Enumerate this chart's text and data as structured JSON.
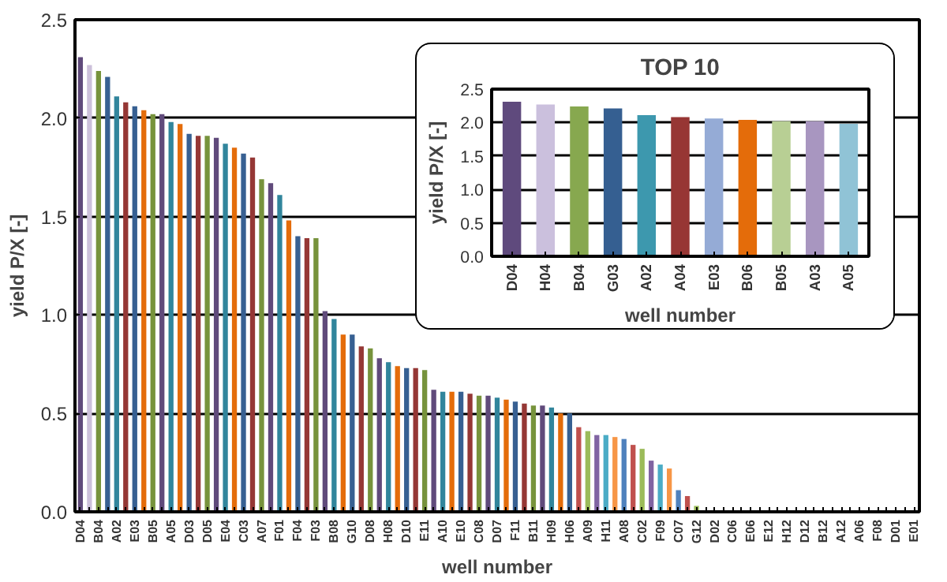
{
  "chart_data": [
    {
      "type": "bar",
      "xlabel": "well number",
      "ylabel": "yield P/X [-]",
      "grid": "y",
      "ylim": [
        0,
        2.5
      ],
      "yticks": [
        {
          "value": 0,
          "label": "0.0"
        },
        {
          "value": 0.5,
          "label": "0.5"
        },
        {
          "value": 1,
          "label": "1.0"
        },
        {
          "value": 1.5,
          "label": "1.5"
        },
        {
          "value": 2,
          "label": "2.0"
        },
        {
          "value": 2.5,
          "label": "2.5"
        }
      ],
      "categories": [
        "D04",
        null,
        "B04",
        null,
        "A02",
        null,
        "E03",
        null,
        "B05",
        null,
        "A05",
        null,
        "D03",
        null,
        "D05",
        null,
        "E04",
        null,
        "C03",
        null,
        "A07",
        null,
        "F01",
        null,
        "F04",
        null,
        "F03",
        null,
        "B08",
        null,
        "G10",
        null,
        "D08",
        null,
        "H08",
        null,
        "D10",
        null,
        "E11",
        null,
        "A10",
        null,
        "E10",
        null,
        "C08",
        null,
        "D07",
        null,
        "F11",
        null,
        "B11",
        null,
        "H09",
        null,
        "H06",
        null,
        "A09",
        null,
        "H11",
        null,
        "A08",
        null,
        "C02",
        null,
        "F09",
        null,
        "C07",
        null,
        "G12",
        null,
        "D02",
        null,
        "C06",
        null,
        "E06",
        null,
        "E12",
        null,
        "H12",
        null,
        "D12",
        null,
        "B12",
        null,
        "A12",
        null,
        "A06",
        null,
        "F08",
        null,
        "D01",
        null,
        "E01"
      ],
      "values": [
        2.31,
        2.27,
        2.24,
        2.21,
        2.11,
        2.08,
        2.06,
        2.04,
        2.02,
        2.02,
        1.98,
        1.97,
        1.92,
        1.91,
        1.91,
        1.9,
        1.87,
        1.85,
        1.82,
        1.8,
        1.69,
        1.67,
        1.61,
        1.48,
        1.4,
        1.39,
        1.39,
        1.02,
        0.98,
        0.9,
        0.9,
        0.84,
        0.83,
        0.78,
        0.76,
        0.74,
        0.73,
        0.73,
        0.72,
        0.62,
        0.61,
        0.61,
        0.61,
        0.6,
        0.59,
        0.59,
        0.58,
        0.57,
        0.56,
        0.55,
        0.54,
        0.54,
        0.53,
        0.5,
        0.5,
        0.43,
        0.41,
        0.39,
        0.39,
        0.38,
        0.37,
        0.34,
        0.32,
        0.26,
        0.24,
        0.22,
        0.11,
        0.08,
        0.03,
        null,
        null,
        null,
        null,
        null,
        0,
        0,
        0,
        0,
        0,
        0,
        0,
        0,
        0,
        0,
        0,
        0,
        0,
        0,
        0,
        0,
        0,
        0,
        0
      ],
      "colors": [
        "#604a7b",
        "#ccc0da",
        "#77933c",
        "#376092",
        "#31859c",
        "#953735",
        "#376092",
        "#e46c0a",
        "#77933c",
        "#604a7b",
        "#31859c",
        "#e46c0a",
        "#376092",
        "#953735",
        "#77933c",
        "#604a7b",
        "#31859c",
        "#e46c0a",
        "#376092",
        "#953735",
        "#77933c",
        "#604a7b",
        "#31859c",
        "#e46c0a",
        "#376092",
        "#953735",
        "#77933c",
        "#604a7b",
        "#31859c",
        "#e46c0a",
        "#376092",
        "#953735",
        "#77933c",
        "#604a7b",
        "#31859c",
        "#e46c0a",
        "#376092",
        "#953735",
        "#77933c",
        "#604a7b",
        "#31859c",
        "#e46c0a",
        "#376092",
        "#953735",
        "#77933c",
        "#604a7b",
        "#31859c",
        "#e46c0a",
        "#376092",
        "#953735",
        "#77933c",
        "#604a7b",
        "#31859c",
        "#e46c0a",
        "#376092",
        "#c0504d",
        "#9bbb59",
        "#8064a2",
        "#4bacc6",
        "#f79646",
        "#4f81bd",
        "#c0504d",
        "#9bbb59",
        "#8064a2",
        "#4bacc6",
        "#f79646",
        "#4f81bd",
        "#c0504d",
        "#9bbb59",
        "#8064a2",
        "#4bacc6",
        "#f79646",
        "#4f81bd",
        "#c0504d",
        "#9bbb59",
        "#8064a2",
        "#4bacc6",
        "#f79646",
        "#4f81bd",
        "#c0504d",
        "#9bbb59",
        "#8064a2",
        "#4bacc6",
        "#f79646",
        "#4f81bd",
        "#c0504d",
        "#9bbb59",
        "#8064a2",
        "#4bacc6",
        "#f79646",
        "#4f81bd",
        "#c0504d",
        "#9bbb59"
      ]
    },
    {
      "type": "bar",
      "title": "TOP 10",
      "xlabel": "well number",
      "ylabel": "yield P/X [-]",
      "grid": "y",
      "ylim": [
        0,
        2.5
      ],
      "yticks": [
        {
          "value": 0,
          "label": "0.0"
        },
        {
          "value": 0.5,
          "label": "0.5"
        },
        {
          "value": 1,
          "label": "1.0"
        },
        {
          "value": 1.5,
          "label": "1.5"
        },
        {
          "value": 2,
          "label": "2.0"
        },
        {
          "value": 2.5,
          "label": "2.5"
        }
      ],
      "categories": [
        "D04",
        "H04",
        "B04",
        "G03",
        "A02",
        "A04",
        "E03",
        "B06",
        "B05",
        "A03",
        "A05"
      ],
      "values": [
        2.31,
        2.27,
        2.24,
        2.21,
        2.11,
        2.08,
        2.06,
        2.04,
        2.02,
        2.02,
        1.98
      ],
      "colors": [
        "#5f4a7d",
        "#cbc0dd",
        "#87a84f",
        "#355f91",
        "#3d98ae",
        "#973634",
        "#95abd6",
        "#e46c0a",
        "#b8cf94",
        "#a896c0",
        "#90c3d6"
      ]
    }
  ]
}
